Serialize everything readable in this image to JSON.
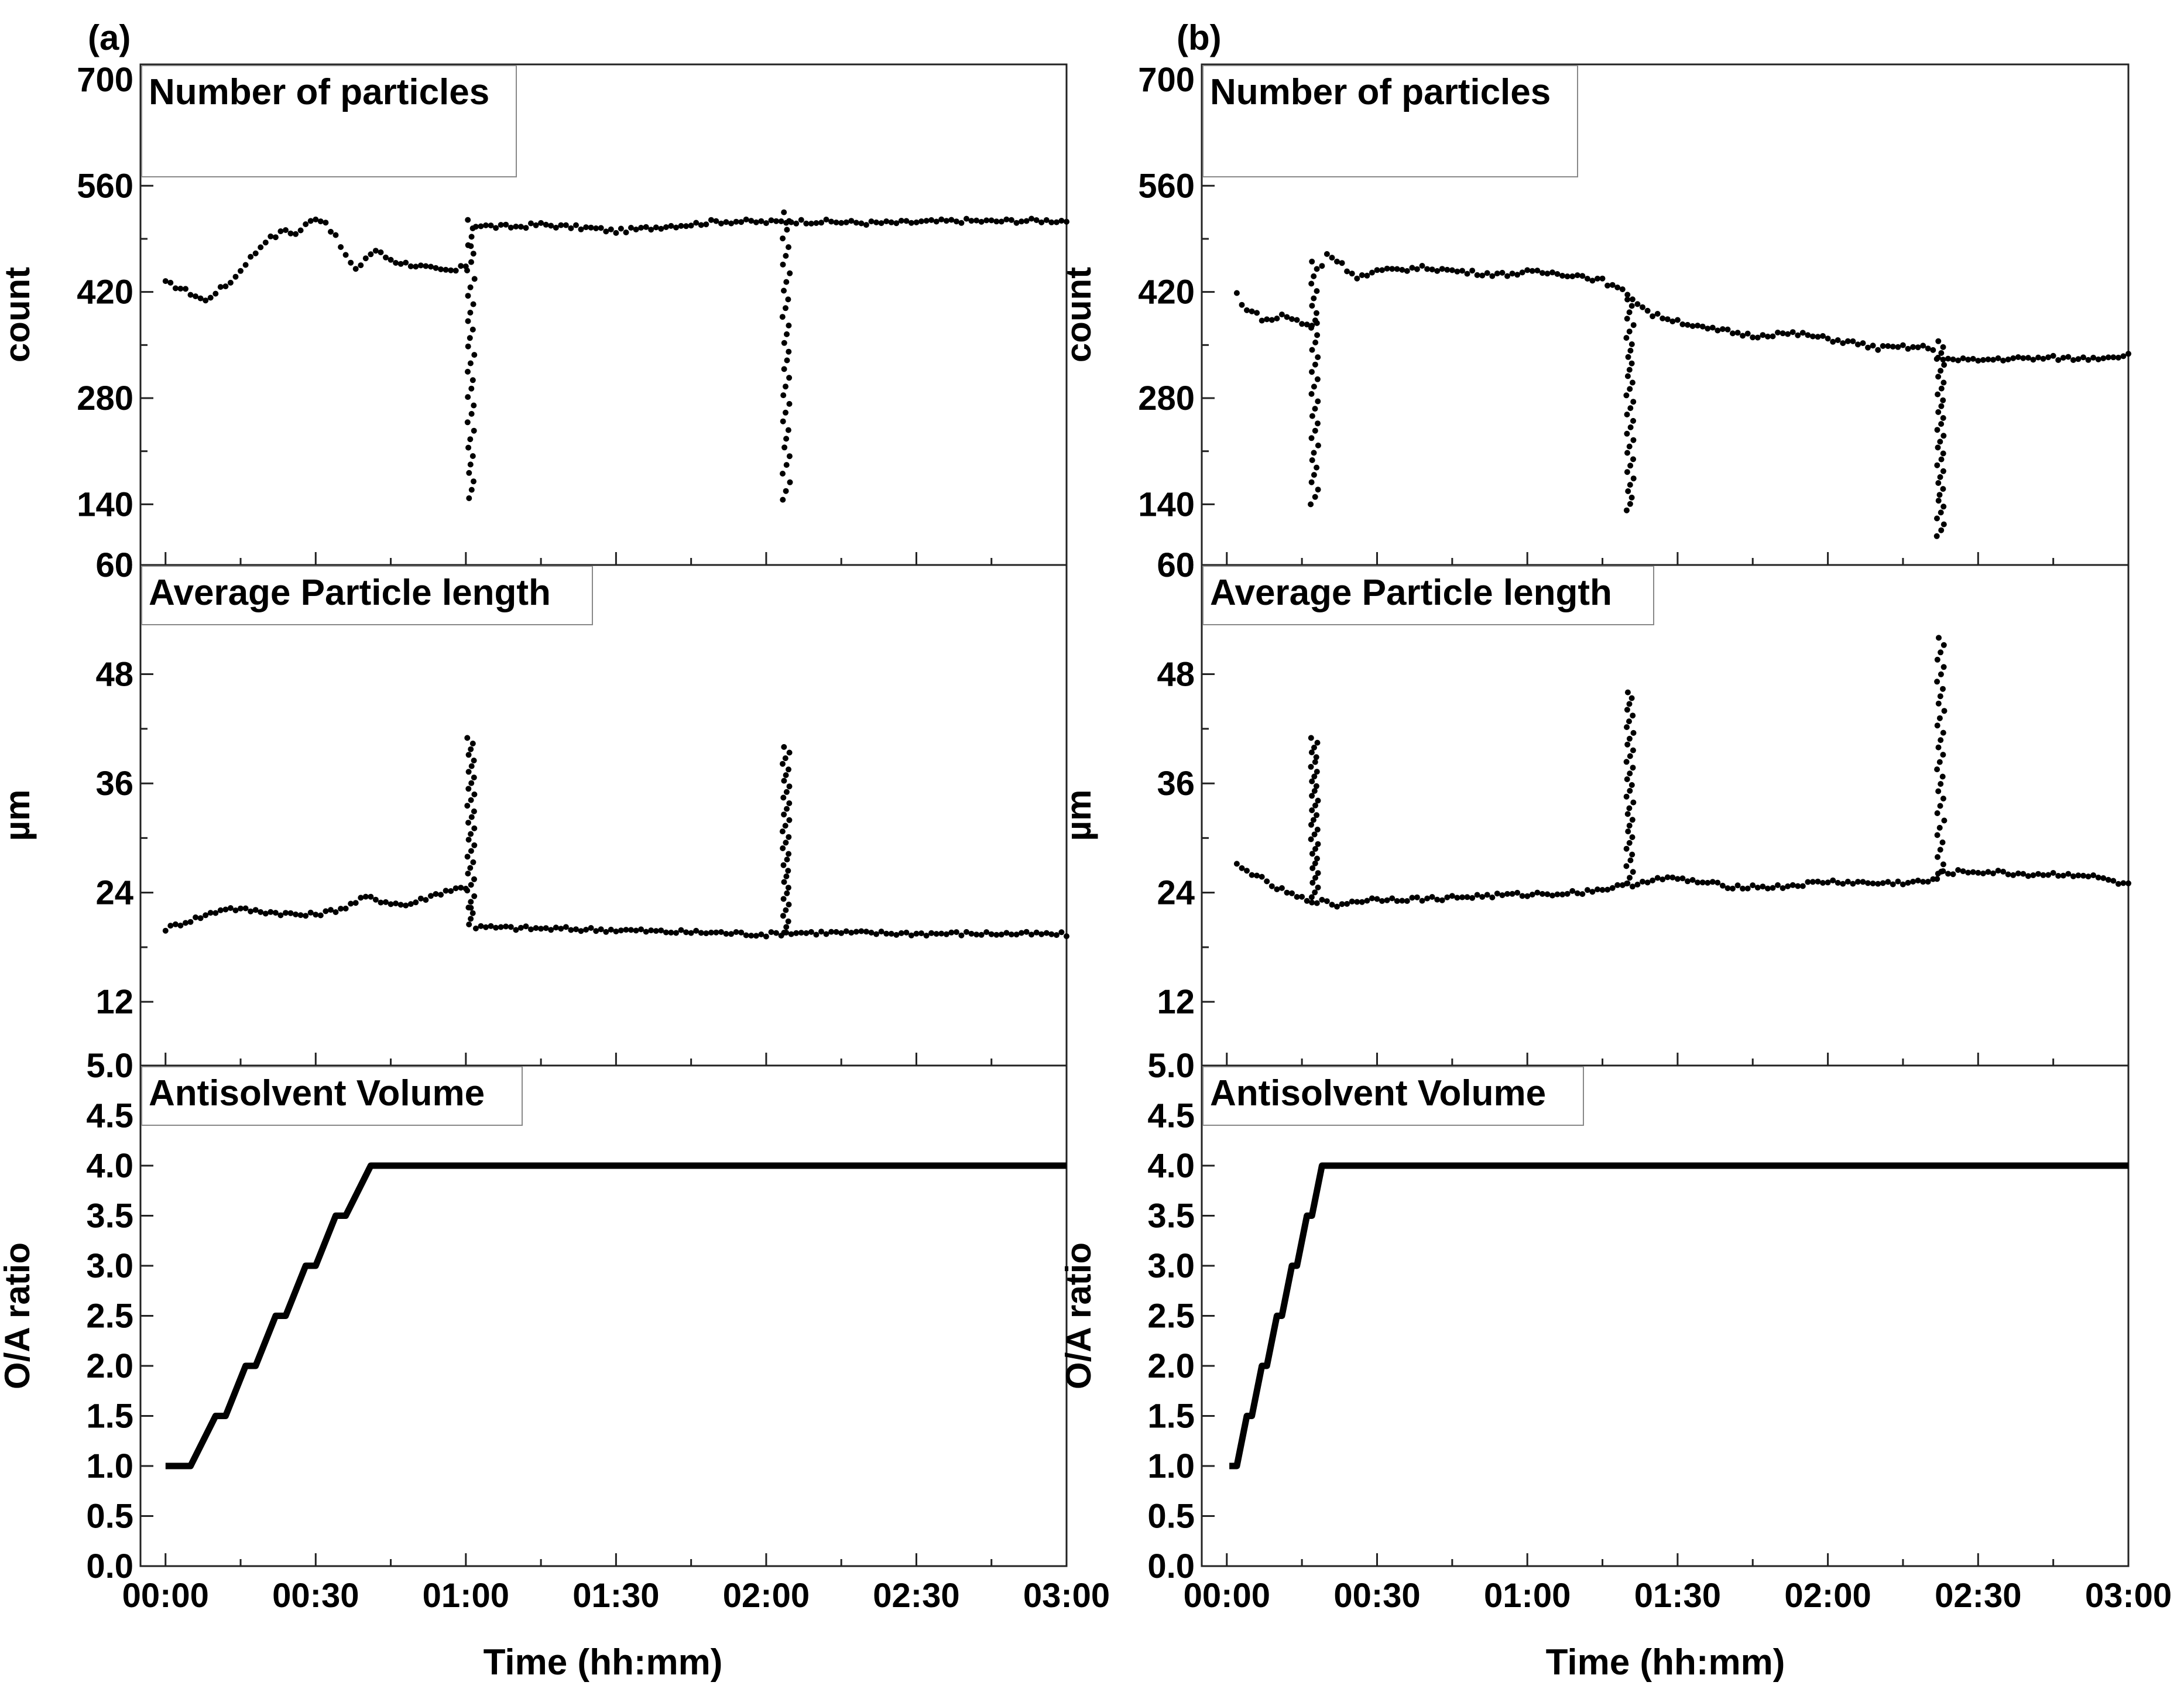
{
  "figure": {
    "panels": [
      {
        "id": "a",
        "label": "(a)"
      },
      {
        "id": "b",
        "label": "(b)"
      }
    ],
    "x_axis_label": "Time (hh:mm)",
    "x_tick_labels": [
      "00:00",
      "00:30",
      "01:00",
      "01:30",
      "02:00",
      "02:30",
      "03:00"
    ]
  },
  "chart_data": [
    {
      "panel": "a",
      "type": "scatter",
      "title": "Number of particles",
      "ylabel": "count",
      "xlabel": "Time (hh:mm)",
      "x_unit": "minutes",
      "xlim": [
        -5,
        180
      ],
      "ylim": [
        60,
        720
      ],
      "yticks": [
        60,
        140,
        280,
        420,
        560,
        700
      ],
      "yminor": [
        210,
        350,
        490,
        630
      ],
      "baseline": [
        [
          0,
          432
        ],
        [
          3,
          425
        ],
        [
          6,
          415
        ],
        [
          8,
          408
        ],
        [
          10,
          420
        ],
        [
          12,
          428
        ],
        [
          14,
          440
        ],
        [
          16,
          458
        ],
        [
          18,
          472
        ],
        [
          20,
          488
        ],
        [
          22,
          494
        ],
        [
          24,
          502
        ],
        [
          26,
          496
        ],
        [
          28,
          508
        ],
        [
          30,
          518
        ],
        [
          32,
          512
        ],
        [
          34,
          492
        ],
        [
          36,
          468
        ],
        [
          38,
          448
        ],
        [
          40,
          465
        ],
        [
          42,
          475
        ],
        [
          44,
          466
        ],
        [
          46,
          460
        ],
        [
          50,
          455
        ],
        [
          55,
          448
        ],
        [
          58,
          448
        ],
        [
          60,
          455
        ],
        [
          62,
          508
        ],
        [
          66,
          506
        ],
        [
          70,
          506
        ],
        [
          75,
          509
        ],
        [
          80,
          506
        ],
        [
          85,
          504
        ],
        [
          90,
          500
        ],
        [
          95,
          503
        ],
        [
          100,
          507
        ],
        [
          105,
          509
        ],
        [
          110,
          513
        ],
        [
          115,
          513
        ],
        [
          120,
          512
        ],
        [
          125,
          513
        ],
        [
          130,
          513
        ],
        [
          135,
          512
        ],
        [
          140,
          511
        ],
        [
          145,
          511
        ],
        [
          150,
          512
        ],
        [
          155,
          513
        ],
        [
          160,
          514
        ],
        [
          165,
          513
        ],
        [
          170,
          514
        ],
        [
          175,
          514
        ],
        [
          180,
          514
        ]
      ],
      "dips": [
        {
          "x": 61,
          "min": 148,
          "top": 515
        },
        {
          "x": 124,
          "min": 146,
          "top": 525
        }
      ]
    },
    {
      "panel": "a",
      "type": "scatter",
      "title": "Average Particle length",
      "ylabel": "µm",
      "xlabel": "Time (hh:mm)",
      "x_unit": "minutes",
      "xlim": [
        -5,
        180
      ],
      "ylim": [
        5,
        60
      ],
      "yticks": [
        5.0,
        12,
        24,
        36,
        48,
        60
      ],
      "ytick_labels": [
        "5.0",
        "12",
        "24",
        "36",
        "48",
        "60"
      ],
      "yminor": [
        18,
        30,
        42,
        54
      ],
      "baseline": [
        [
          0,
          20.0
        ],
        [
          4,
          20.8
        ],
        [
          8,
          21.5
        ],
        [
          12,
          22.3
        ],
        [
          16,
          22.1
        ],
        [
          20,
          21.9
        ],
        [
          24,
          21.7
        ],
        [
          28,
          21.5
        ],
        [
          32,
          21.8
        ],
        [
          36,
          22.4
        ],
        [
          40,
          23.5
        ],
        [
          44,
          23.0
        ],
        [
          48,
          22.6
        ],
        [
          52,
          23.4
        ],
        [
          56,
          24.2
        ],
        [
          60,
          24.6
        ],
        [
          62,
          20.2
        ],
        [
          70,
          20.1
        ],
        [
          80,
          20.0
        ],
        [
          90,
          19.9
        ],
        [
          100,
          19.7
        ],
        [
          110,
          19.6
        ],
        [
          120,
          19.4
        ],
        [
          125,
          19.6
        ],
        [
          135,
          19.6
        ],
        [
          150,
          19.5
        ],
        [
          165,
          19.5
        ],
        [
          180,
          19.4
        ]
      ],
      "spikes": [
        {
          "x": 61,
          "base": 20.5,
          "max": 41.0
        },
        {
          "x": 124,
          "base": 19.6,
          "max": 40.0
        }
      ]
    },
    {
      "panel": "a",
      "type": "line",
      "title": "Antisolvent Volume",
      "ylabel": "O/A ratio",
      "xlabel": "Time (hh:mm)",
      "x_unit": "minutes",
      "xlim": [
        -5,
        180
      ],
      "ylim": [
        0,
        5
      ],
      "yticks": [
        0.0,
        0.5,
        1.0,
        1.5,
        2.0,
        2.5,
        3.0,
        3.5,
        4.0,
        4.5
      ],
      "ytick_labels": [
        "0.0",
        "0.5",
        "1.0",
        "1.5",
        "2.0",
        "2.5",
        "3.0",
        "3.5",
        "4.0",
        "4.5"
      ],
      "x": [
        0,
        5,
        10,
        12,
        16,
        18,
        22,
        24,
        28,
        30,
        34,
        36,
        41,
        180
      ],
      "y": [
        1.0,
        1.0,
        1.5,
        1.5,
        2.0,
        2.0,
        2.5,
        2.5,
        3.0,
        3.0,
        3.5,
        3.5,
        4.0,
        4.0
      ]
    },
    {
      "panel": "b",
      "type": "scatter",
      "title": "Number of particles",
      "ylabel": "count",
      "xlabel": "Time (hh:mm)",
      "x_unit": "minutes",
      "xlim": [
        -5,
        180
      ],
      "ylim": [
        60,
        720
      ],
      "yticks": [
        60,
        140,
        280,
        420,
        560,
        700
      ],
      "yminor": [
        210,
        350,
        490,
        630
      ],
      "baseline": [
        [
          2,
          418
        ],
        [
          3,
          402
        ],
        [
          5,
          395
        ],
        [
          7,
          385
        ],
        [
          9,
          382
        ],
        [
          11,
          390
        ],
        [
          13,
          385
        ],
        [
          15,
          378
        ],
        [
          17,
          375
        ],
        [
          18,
          380
        ],
        [
          19,
          455
        ],
        [
          20,
          470
        ],
        [
          22,
          462
        ],
        [
          24,
          450
        ],
        [
          26,
          440
        ],
        [
          28,
          442
        ],
        [
          30,
          447
        ],
        [
          35,
          450
        ],
        [
          40,
          452
        ],
        [
          45,
          448
        ],
        [
          50,
          445
        ],
        [
          55,
          443
        ],
        [
          60,
          446
        ],
        [
          65,
          445
        ],
        [
          70,
          442
        ],
        [
          75,
          435
        ],
        [
          78,
          424
        ],
        [
          80,
          418
        ],
        [
          83,
          400
        ],
        [
          85,
          390
        ],
        [
          90,
          382
        ],
        [
          95,
          372
        ],
        [
          100,
          368
        ],
        [
          105,
          362
        ],
        [
          110,
          365
        ],
        [
          115,
          364
        ],
        [
          120,
          358
        ],
        [
          125,
          353
        ],
        [
          130,
          346
        ],
        [
          135,
          347
        ],
        [
          140,
          347
        ],
        [
          142,
          335
        ],
        [
          145,
          330
        ],
        [
          150,
          330
        ],
        [
          155,
          332
        ],
        [
          160,
          332
        ],
        [
          165,
          333
        ],
        [
          170,
          332
        ],
        [
          175,
          334
        ],
        [
          180,
          337
        ]
      ],
      "dips": [
        {
          "x": 17.5,
          "min": 140,
          "top": 460
        },
        {
          "x": 80.5,
          "min": 132,
          "top": 410
        },
        {
          "x": 142.5,
          "min": 98,
          "top": 355
        }
      ]
    },
    {
      "panel": "b",
      "type": "scatter",
      "title": "Average Particle length",
      "ylabel": "µm",
      "xlabel": "Time (hh:mm)",
      "x_unit": "minutes",
      "xlim": [
        -5,
        180
      ],
      "ylim": [
        5,
        60
      ],
      "yticks": [
        5.0,
        12,
        24,
        36,
        48,
        60
      ],
      "ytick_labels": [
        "5.0",
        "12",
        "24",
        "36",
        "48",
        "60"
      ],
      "yminor": [
        18,
        30,
        42,
        54
      ],
      "baseline": [
        [
          2,
          27.0
        ],
        [
          4,
          26.3
        ],
        [
          6,
          26.0
        ],
        [
          8,
          25.0
        ],
        [
          10,
          24.5
        ],
        [
          12,
          24.0
        ],
        [
          14,
          23.5
        ],
        [
          16,
          23.2
        ],
        [
          19,
          23.0
        ],
        [
          22,
          22.6
        ],
        [
          25,
          23.0
        ],
        [
          30,
          23.3
        ],
        [
          40,
          23.3
        ],
        [
          50,
          23.6
        ],
        [
          60,
          23.8
        ],
        [
          70,
          24.0
        ],
        [
          75,
          24.4
        ],
        [
          79,
          24.7
        ],
        [
          82,
          25.0
        ],
        [
          85,
          25.5
        ],
        [
          90,
          25.5
        ],
        [
          100,
          24.7
        ],
        [
          110,
          24.6
        ],
        [
          120,
          25.2
        ],
        [
          130,
          25.0
        ],
        [
          140,
          25.2
        ],
        [
          143,
          26.2
        ],
        [
          150,
          26.3
        ],
        [
          160,
          26.0
        ],
        [
          170,
          26.0
        ],
        [
          175,
          25.5
        ],
        [
          180,
          24.8
        ]
      ],
      "spikes": [
        {
          "x": 17.5,
          "base": 23.5,
          "max": 41.0
        },
        {
          "x": 80.5,
          "base": 25.0,
          "max": 46.0
        },
        {
          "x": 142.5,
          "base": 25.5,
          "max": 52.0
        }
      ]
    },
    {
      "panel": "b",
      "type": "line",
      "title": "Antisolvent Volume",
      "ylabel": "O/A ratio",
      "xlabel": "Time (hh:mm)",
      "x_unit": "minutes",
      "xlim": [
        -5,
        180
      ],
      "ylim": [
        0,
        5
      ],
      "yticks": [
        0.0,
        0.5,
        1.0,
        1.5,
        2.0,
        2.5,
        3.0,
        3.5,
        4.0,
        4.5
      ],
      "ytick_labels": [
        "0.0",
        "0.5",
        "1.0",
        "1.5",
        "2.0",
        "2.5",
        "3.0",
        "3.5",
        "4.0",
        "4.5"
      ],
      "x": [
        0.5,
        2,
        4,
        5,
        7,
        8,
        10,
        11,
        13,
        14,
        16,
        17,
        19,
        180
      ],
      "y": [
        1.0,
        1.0,
        1.5,
        1.5,
        2.0,
        2.0,
        2.5,
        2.5,
        3.0,
        3.0,
        3.5,
        3.5,
        4.0,
        4.0
      ]
    }
  ]
}
